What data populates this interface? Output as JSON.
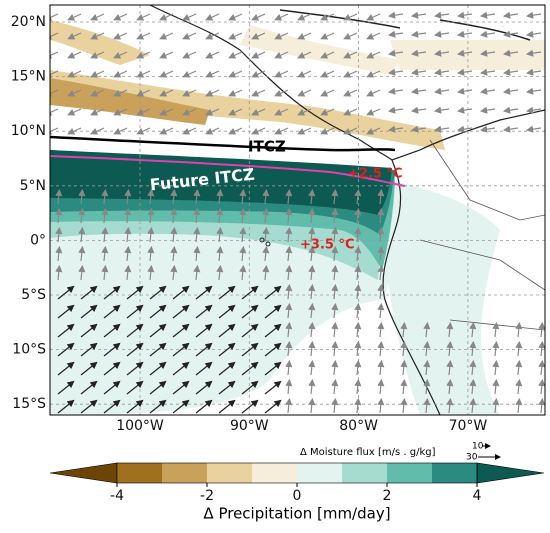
{
  "map": {
    "lat_labels": [
      "20°N",
      "15°N",
      "10°N",
      "5°N",
      "0°",
      "5°S",
      "10°S",
      "15°S"
    ],
    "lon_labels": [
      "100°W",
      "90°W",
      "80°W",
      "70°W"
    ],
    "annotations": {
      "itcz": "ITCZ",
      "future_itcz": "Future ITCZ",
      "warming_north": "+2.5 °C",
      "warming_south": "+3.5 °C"
    },
    "vector_key": {
      "label": "Δ Moisture flux [m/s . g/kg]",
      "small": "10",
      "large": "30"
    }
  },
  "colorbar": {
    "label": "Δ Precipitation [mm/day]",
    "ticks": [
      -4,
      -2,
      0,
      2,
      4
    ],
    "colors": [
      "#6e4306",
      "#a0701f",
      "#caa15b",
      "#e9d29d",
      "#f6eedb",
      "#e3f3ef",
      "#a6dccf",
      "#62bcac",
      "#2b8b80",
      "#0c5a52"
    ]
  }
}
